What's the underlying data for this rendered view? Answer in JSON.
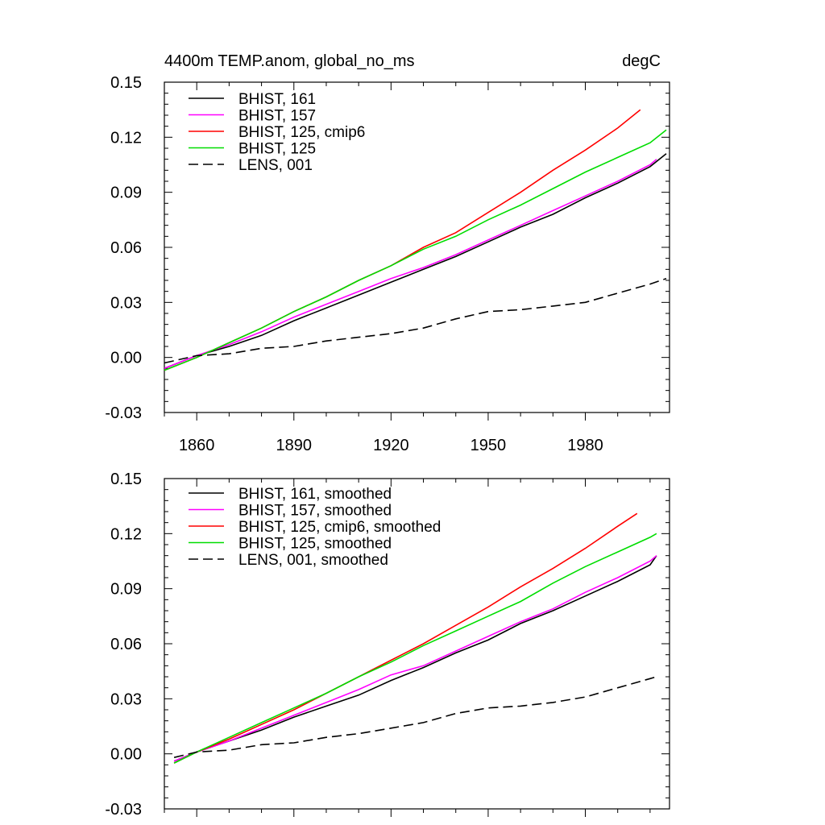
{
  "chart_data": [
    {
      "type": "line",
      "title_left": "4400m TEMP.anom, global_no_ms",
      "title_right": "degC",
      "xlim": [
        1850,
        2006
      ],
      "ylim": [
        -0.03,
        0.15
      ],
      "x_ticks": [
        1860,
        1890,
        1920,
        1950,
        1980
      ],
      "x_tick_labels": [
        "1860",
        "1890",
        "1920",
        "1950",
        "1980"
      ],
      "y_ticks": [
        -0.03,
        0.0,
        0.03,
        0.06,
        0.09,
        0.12,
        0.15
      ],
      "y_tick_labels": [
        "-0.03",
        "0.00",
        "0.03",
        "0.06",
        "0.09",
        "0.12",
        "0.15"
      ],
      "legend_position": "top-left",
      "series": [
        {
          "name": "BHIST, 161",
          "color": "#000000",
          "dash": "solid",
          "x": [
            1850,
            1860,
            1870,
            1880,
            1890,
            1900,
            1910,
            1920,
            1930,
            1940,
            1950,
            1960,
            1970,
            1980,
            1990,
            2000,
            2005
          ],
          "y": [
            -0.006,
            0.001,
            0.006,
            0.012,
            0.02,
            0.027,
            0.034,
            0.041,
            0.048,
            0.055,
            0.063,
            0.071,
            0.078,
            0.087,
            0.095,
            0.104,
            0.111
          ]
        },
        {
          "name": "BHIST, 157",
          "color": "#ff00ff",
          "dash": "solid",
          "x": [
            1850,
            1860,
            1870,
            1880,
            1890,
            1900,
            1910,
            1920,
            1930,
            1940,
            1950,
            1960,
            1970,
            1980,
            1990,
            2000,
            2002
          ],
          "y": [
            -0.006,
            0.001,
            0.007,
            0.014,
            0.022,
            0.029,
            0.036,
            0.043,
            0.049,
            0.056,
            0.064,
            0.072,
            0.08,
            0.088,
            0.096,
            0.105,
            0.108
          ]
        },
        {
          "name": "BHIST, 125, cmip6",
          "color": "#ff0000",
          "dash": "solid",
          "x": [
            1850,
            1860,
            1870,
            1880,
            1890,
            1900,
            1910,
            1920,
            1930,
            1940,
            1950,
            1960,
            1970,
            1980,
            1990,
            1997
          ],
          "y": [
            -0.007,
            0.0,
            0.008,
            0.016,
            0.025,
            0.033,
            0.042,
            0.05,
            0.06,
            0.068,
            0.079,
            0.09,
            0.102,
            0.113,
            0.125,
            0.135
          ]
        },
        {
          "name": "BHIST, 125",
          "color": "#00dd00",
          "dash": "solid",
          "x": [
            1850,
            1860,
            1870,
            1880,
            1890,
            1900,
            1910,
            1920,
            1930,
            1940,
            1950,
            1960,
            1970,
            1980,
            1990,
            2000,
            2005
          ],
          "y": [
            -0.007,
            0.0,
            0.008,
            0.016,
            0.025,
            0.033,
            0.042,
            0.05,
            0.059,
            0.066,
            0.075,
            0.083,
            0.092,
            0.101,
            0.109,
            0.117,
            0.124
          ]
        },
        {
          "name": "LENS, 001",
          "color": "#000000",
          "dash": "dashed",
          "x": [
            1850,
            1860,
            1870,
            1880,
            1890,
            1900,
            1910,
            1920,
            1930,
            1940,
            1950,
            1960,
            1970,
            1980,
            1990,
            2000,
            2005
          ],
          "y": [
            -0.003,
            0.001,
            0.002,
            0.005,
            0.006,
            0.009,
            0.011,
            0.013,
            0.016,
            0.021,
            0.025,
            0.026,
            0.028,
            0.03,
            0.035,
            0.04,
            0.043
          ]
        }
      ]
    },
    {
      "type": "line",
      "xlim": [
        1850,
        2006
      ],
      "ylim": [
        -0.03,
        0.15
      ],
      "x_ticks": [
        1860,
        1890,
        1920,
        1950,
        1980
      ],
      "y_ticks": [
        -0.03,
        0.0,
        0.03,
        0.06,
        0.09,
        0.12,
        0.15
      ],
      "y_tick_labels": [
        "-0.03",
        "0.00",
        "0.03",
        "0.06",
        "0.09",
        "0.12",
        "0.15"
      ],
      "legend_position": "top-left",
      "series": [
        {
          "name": "BHIST, 161, smoothed",
          "color": "#000000",
          "dash": "solid",
          "x": [
            1853,
            1860,
            1870,
            1880,
            1890,
            1900,
            1910,
            1920,
            1930,
            1940,
            1950,
            1960,
            1970,
            1980,
            1990,
            2000,
            2002
          ],
          "y": [
            -0.004,
            0.001,
            0.007,
            0.013,
            0.02,
            0.026,
            0.032,
            0.04,
            0.047,
            0.055,
            0.062,
            0.071,
            0.078,
            0.086,
            0.094,
            0.103,
            0.108
          ]
        },
        {
          "name": "BHIST, 157, smoothed",
          "color": "#ff00ff",
          "dash": "solid",
          "x": [
            1853,
            1860,
            1870,
            1880,
            1890,
            1900,
            1910,
            1920,
            1930,
            1940,
            1950,
            1960,
            1970,
            1980,
            1990,
            2000,
            2002
          ],
          "y": [
            -0.004,
            0.001,
            0.007,
            0.014,
            0.021,
            0.028,
            0.035,
            0.043,
            0.048,
            0.056,
            0.064,
            0.072,
            0.079,
            0.088,
            0.096,
            0.105,
            0.108
          ]
        },
        {
          "name": "BHIST, 125, cmip6, smoothed",
          "color": "#ff0000",
          "dash": "solid",
          "x": [
            1853,
            1860,
            1870,
            1880,
            1890,
            1900,
            1910,
            1920,
            1930,
            1940,
            1950,
            1960,
            1970,
            1980,
            1990,
            1996
          ],
          "y": [
            -0.005,
            0.001,
            0.008,
            0.016,
            0.024,
            0.033,
            0.042,
            0.051,
            0.06,
            0.07,
            0.08,
            0.091,
            0.101,
            0.112,
            0.124,
            0.131
          ]
        },
        {
          "name": "BHIST, 125, smoothed",
          "color": "#00dd00",
          "dash": "solid",
          "x": [
            1853,
            1860,
            1870,
            1880,
            1890,
            1900,
            1910,
            1920,
            1930,
            1940,
            1950,
            1960,
            1970,
            1980,
            1990,
            2000,
            2002
          ],
          "y": [
            -0.005,
            0.001,
            0.009,
            0.017,
            0.025,
            0.033,
            0.042,
            0.05,
            0.059,
            0.067,
            0.075,
            0.083,
            0.093,
            0.102,
            0.11,
            0.118,
            0.12
          ]
        },
        {
          "name": "LENS, 001, smoothed",
          "color": "#000000",
          "dash": "dashed",
          "x": [
            1853,
            1860,
            1870,
            1880,
            1890,
            1900,
            1910,
            1920,
            1930,
            1940,
            1950,
            1960,
            1970,
            1980,
            1990,
            2000,
            2002
          ],
          "y": [
            -0.002,
            0.001,
            0.002,
            0.005,
            0.006,
            0.009,
            0.011,
            0.014,
            0.017,
            0.022,
            0.025,
            0.026,
            0.028,
            0.031,
            0.036,
            0.041,
            0.042
          ]
        }
      ]
    }
  ]
}
